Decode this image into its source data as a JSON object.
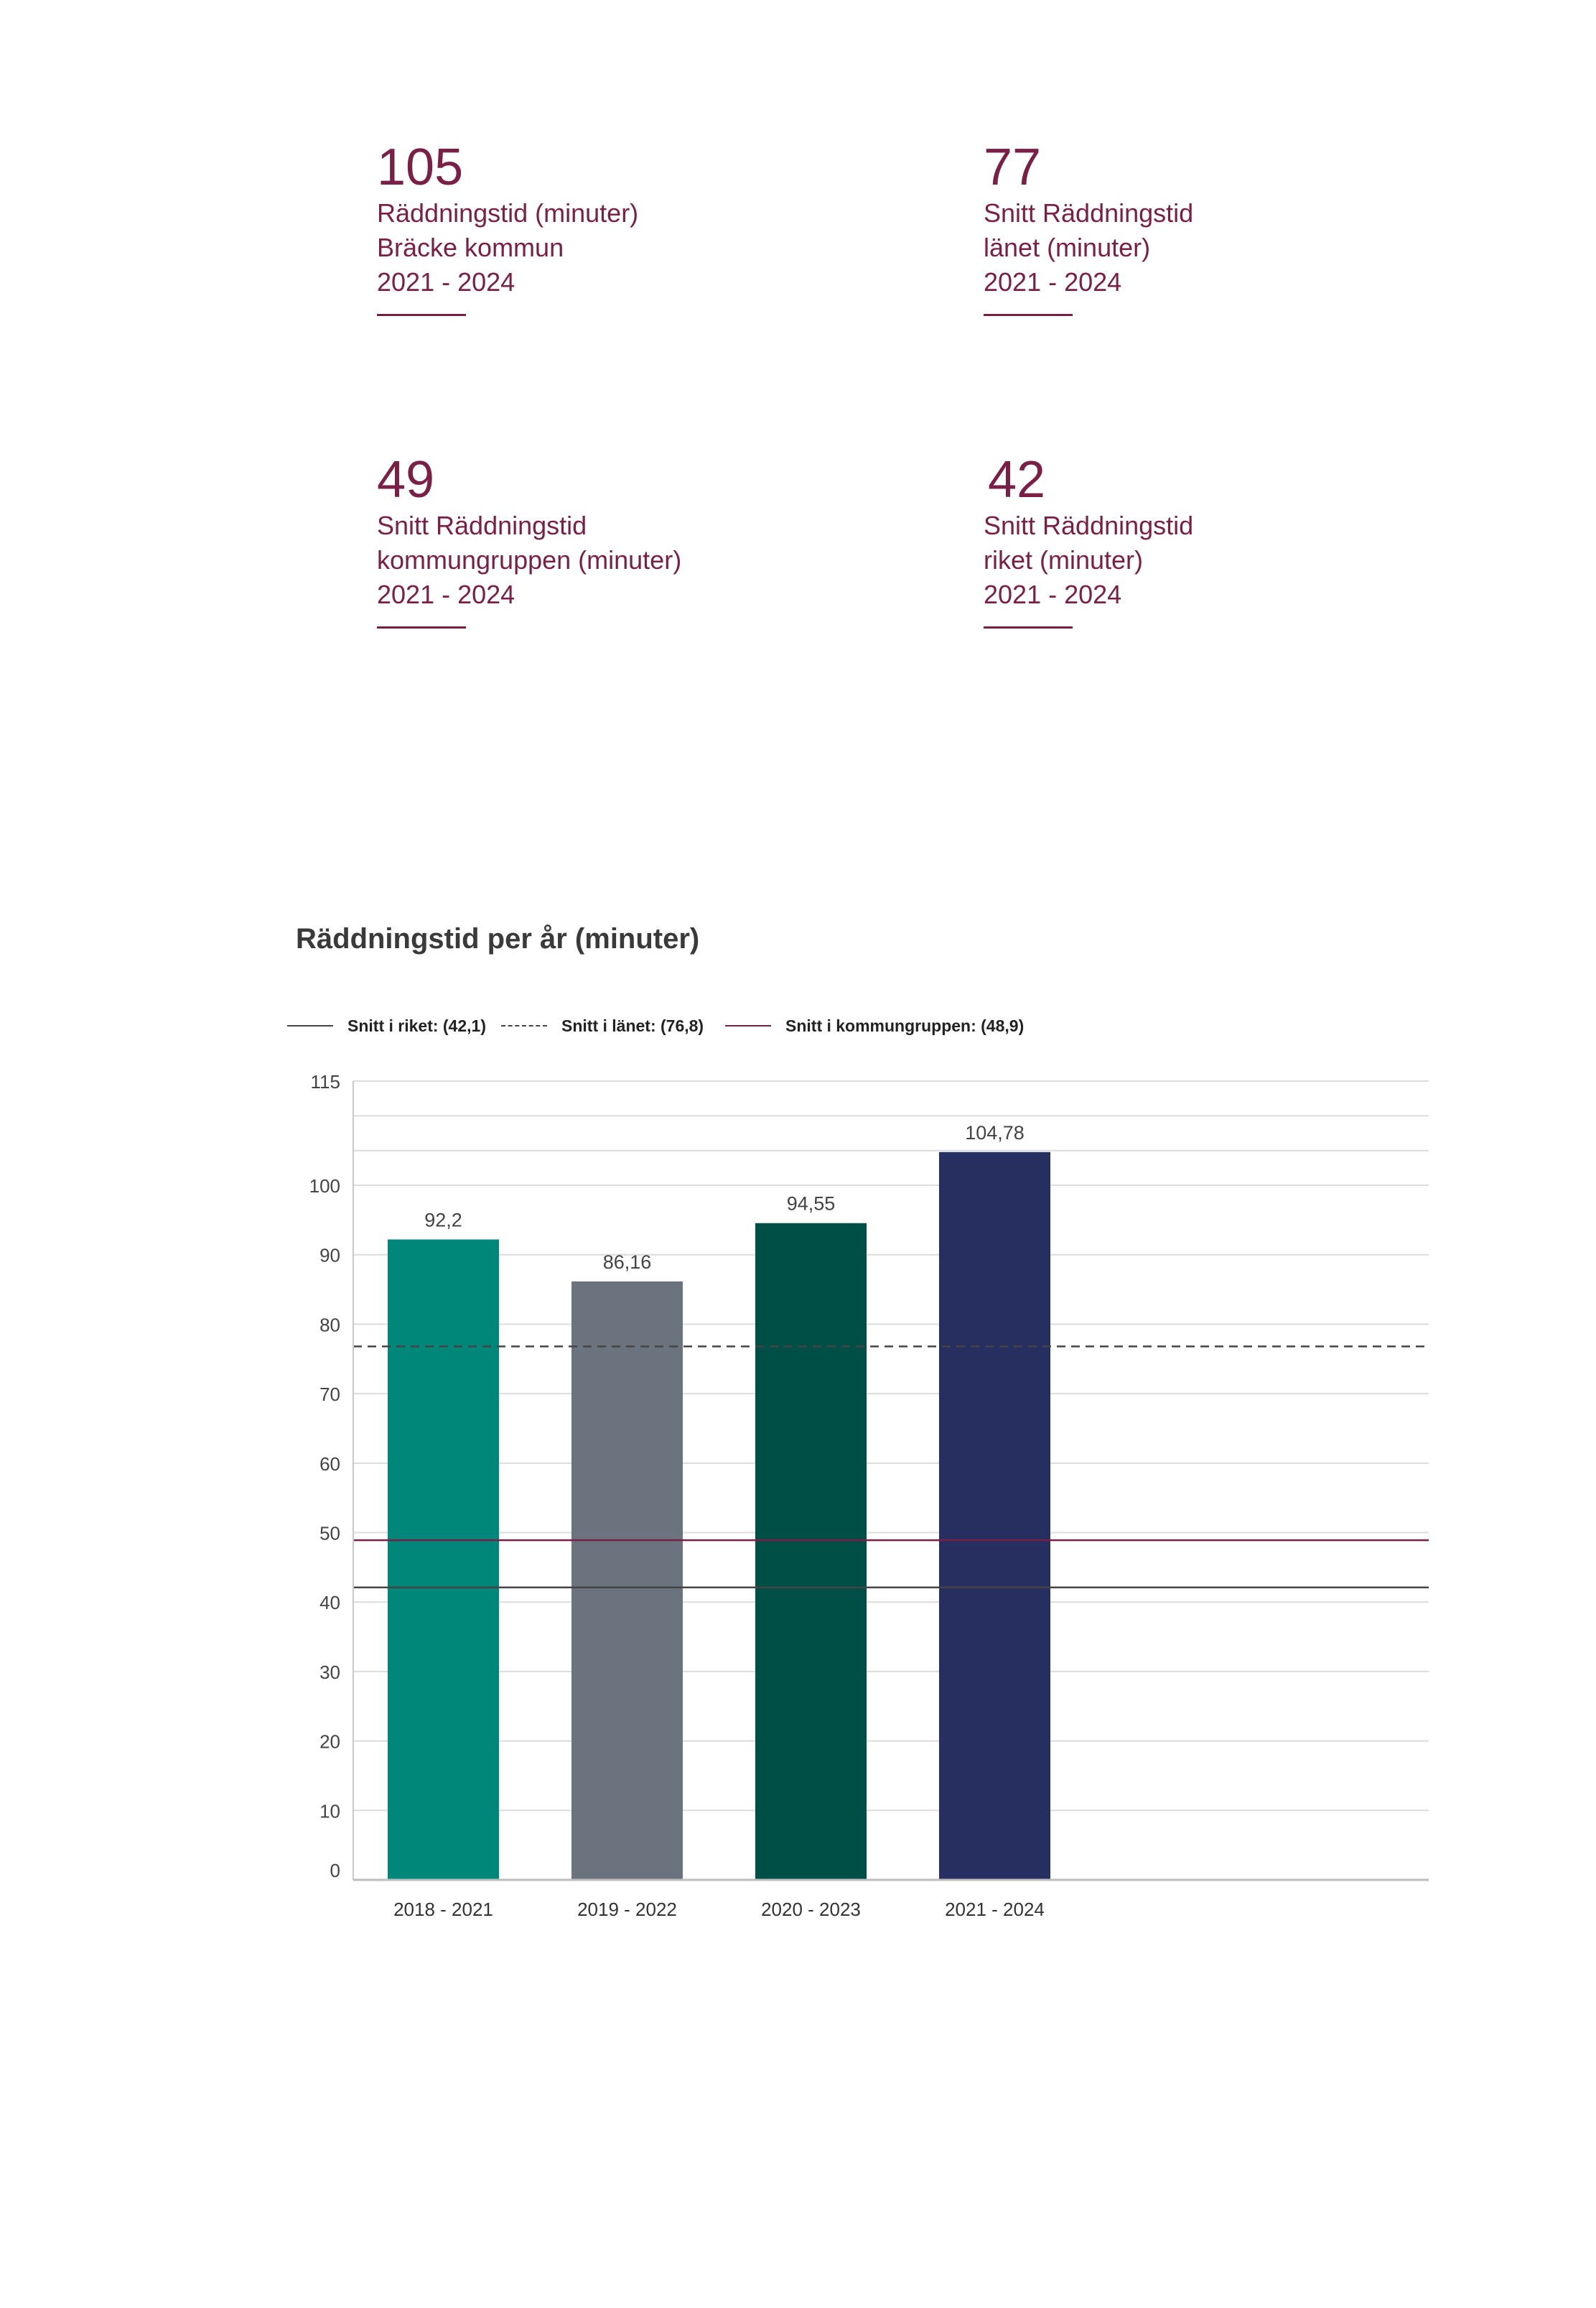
{
  "kpis": [
    {
      "value": "105",
      "lines": [
        "Räddningstid (minuter)",
        "Bräcke kommun",
        "2021 - 2024"
      ]
    },
    {
      "value": "77",
      "lines": [
        "Snitt Räddningstid",
        "länet (minuter)",
        "2021 - 2024"
      ]
    },
    {
      "value": "49",
      "lines": [
        "Snitt Räddningstid",
        "kommungruppen (minuter)",
        "2021 - 2024"
      ]
    },
    {
      "value": "42",
      "lines": [
        "Snitt Räddningstid",
        "riket (minuter)",
        "2021 - 2024"
      ]
    }
  ],
  "colors": {
    "accent": "#7a1f45",
    "bars": [
      "#00877a",
      "#6b737e",
      "#004f47",
      "#262f5f"
    ],
    "riket": "#444444",
    "lanet": "#444444",
    "kommungruppen": "#7a1f45"
  },
  "legend": [
    {
      "label": "Snitt i riket: (42,1)",
      "style": "solid",
      "color": "#444444"
    },
    {
      "label": "Snitt i länet: (76,8)",
      "style": "dashed",
      "color": "#444444"
    },
    {
      "label": "Snitt i kommungruppen: (48,9)",
      "style": "solid",
      "color": "#7a1f45"
    }
  ],
  "chart_data": {
    "type": "bar",
    "title": "Räddningstid per år (minuter)",
    "xlabel": "",
    "ylabel": "",
    "categories": [
      "2018 - 2021",
      "2019 - 2022",
      "2020 - 2023",
      "2021 - 2024"
    ],
    "values": [
      92.2,
      86.16,
      94.55,
      104.78
    ],
    "value_labels": [
      "92,2",
      "86,16",
      "94,55",
      "104,78"
    ],
    "ylim": [
      0,
      115
    ],
    "yticks": [
      0,
      10,
      20,
      30,
      40,
      50,
      60,
      70,
      80,
      90,
      100,
      115
    ],
    "grid": true,
    "legend_position": "top-left",
    "reference_lines": [
      {
        "name": "Snitt i riket",
        "value": 42.1,
        "style": "solid"
      },
      {
        "name": "Snitt i länet",
        "value": 76.8,
        "style": "dashed"
      },
      {
        "name": "Snitt i kommungruppen",
        "value": 48.9,
        "style": "solid"
      }
    ]
  }
}
